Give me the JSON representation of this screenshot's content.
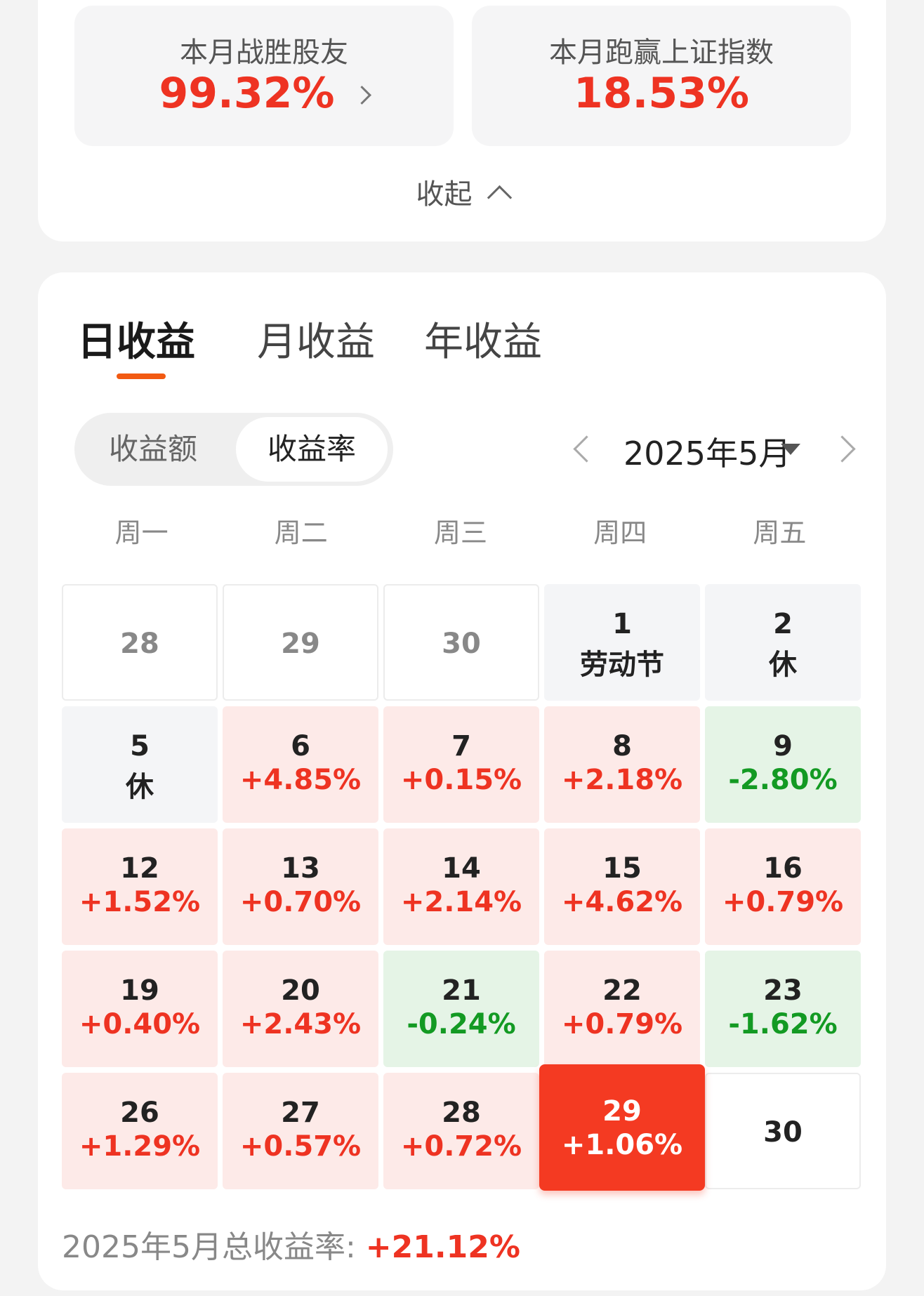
{
  "summary": {
    "beat_peers_label": "本月战胜股友",
    "beat_peers_value": "99.32%",
    "beat_index_label": "本月跑赢上证指数",
    "beat_index_value": "18.53%",
    "collapse_label": "收起"
  },
  "tabs": [
    "日收益",
    "月收益",
    "年收益"
  ],
  "active_tab": 0,
  "segment": {
    "amount_label": "收益额",
    "rate_label": "收益率",
    "selected": "收益率"
  },
  "month": "2025年5月",
  "weekdays": [
    "周一",
    "周二",
    "周三",
    "周四",
    "周五"
  ],
  "days": [
    {
      "day": "28",
      "sub": "",
      "type": "muted"
    },
    {
      "day": "29",
      "sub": "",
      "type": "muted"
    },
    {
      "day": "30",
      "sub": "",
      "type": "muted"
    },
    {
      "day": "1",
      "sub": "劳动节",
      "type": "holiday"
    },
    {
      "day": "2",
      "sub": "休",
      "type": "holiday"
    },
    {
      "day": "5",
      "sub": "休",
      "type": "holiday"
    },
    {
      "day": "6",
      "sub": "+4.85%",
      "type": "up"
    },
    {
      "day": "7",
      "sub": "+0.15%",
      "type": "up"
    },
    {
      "day": "8",
      "sub": "+2.18%",
      "type": "up"
    },
    {
      "day": "9",
      "sub": "-2.80%",
      "type": "down"
    },
    {
      "day": "12",
      "sub": "+1.52%",
      "type": "up"
    },
    {
      "day": "13",
      "sub": "+0.70%",
      "type": "up"
    },
    {
      "day": "14",
      "sub": "+2.14%",
      "type": "up"
    },
    {
      "day": "15",
      "sub": "+4.62%",
      "type": "up"
    },
    {
      "day": "16",
      "sub": "+0.79%",
      "type": "up"
    },
    {
      "day": "19",
      "sub": "+0.40%",
      "type": "up"
    },
    {
      "day": "20",
      "sub": "+2.43%",
      "type": "up"
    },
    {
      "day": "21",
      "sub": "-0.24%",
      "type": "down"
    },
    {
      "day": "22",
      "sub": "+0.79%",
      "type": "up"
    },
    {
      "day": "23",
      "sub": "-1.62%",
      "type": "down"
    },
    {
      "day": "26",
      "sub": "+1.29%",
      "type": "up"
    },
    {
      "day": "27",
      "sub": "+0.57%",
      "type": "up"
    },
    {
      "day": "28",
      "sub": "+0.72%",
      "type": "up"
    },
    {
      "day": "29",
      "sub": "+1.06%",
      "type": "selected"
    },
    {
      "day": "30",
      "sub": "",
      "type": "future"
    }
  ],
  "total": {
    "label": "2025年5月总收益率: ",
    "value": "+21.12%"
  },
  "colors": {
    "up": "#ee3322",
    "down": "#139a23",
    "selected": "#f43a22",
    "tab_underline": "#f25a12"
  }
}
